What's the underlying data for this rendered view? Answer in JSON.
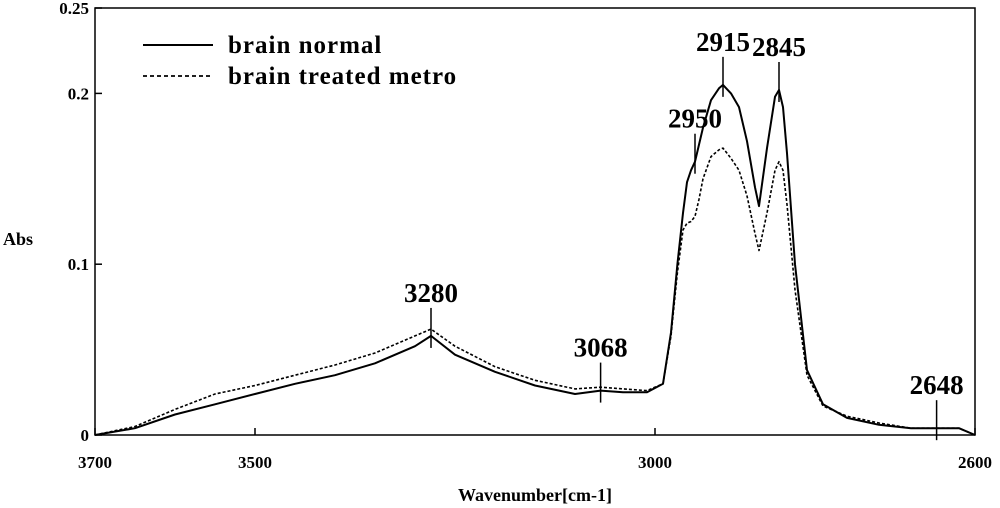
{
  "chart_data": {
    "type": "line",
    "xlabel": "Wavenumber[cm-1]",
    "ylabel": "Abs",
    "xlim": [
      3700,
      2600
    ],
    "ylim": [
      0,
      0.25
    ],
    "x_reversed": true,
    "grid": false,
    "legend_position": "top-left",
    "x_ticks": [
      {
        "value": 3700,
        "label": "3700"
      },
      {
        "value": 3500,
        "label": "3500"
      },
      {
        "value": 3000,
        "label": "3000"
      },
      {
        "value": 2600,
        "label": "2600"
      }
    ],
    "y_ticks": [
      {
        "value": 0,
        "label": "0"
      },
      {
        "value": 0.1,
        "label": "0.1"
      },
      {
        "value": 0.2,
        "label": "0.2"
      },
      {
        "value": 0.25,
        "label": "0.25"
      }
    ],
    "series": [
      {
        "name": "brain normal",
        "style": "solid",
        "color": "#000000",
        "x": [
          3700,
          3650,
          3600,
          3550,
          3500,
          3450,
          3400,
          3350,
          3300,
          3280,
          3250,
          3200,
          3150,
          3100,
          3068,
          3040,
          3010,
          2990,
          2980,
          2972,
          2965,
          2960,
          2955,
          2950,
          2945,
          2940,
          2930,
          2920,
          2915,
          2905,
          2895,
          2885,
          2875,
          2870,
          2860,
          2850,
          2845,
          2840,
          2835,
          2825,
          2810,
          2790,
          2760,
          2720,
          2680,
          2648,
          2620,
          2600
        ],
        "y": [
          0.0,
          0.004,
          0.012,
          0.018,
          0.024,
          0.03,
          0.035,
          0.042,
          0.052,
          0.058,
          0.047,
          0.037,
          0.029,
          0.024,
          0.026,
          0.025,
          0.025,
          0.03,
          0.06,
          0.1,
          0.13,
          0.148,
          0.155,
          0.16,
          0.17,
          0.18,
          0.196,
          0.203,
          0.205,
          0.2,
          0.192,
          0.172,
          0.145,
          0.134,
          0.168,
          0.198,
          0.202,
          0.192,
          0.165,
          0.1,
          0.038,
          0.018,
          0.01,
          0.006,
          0.004,
          0.004,
          0.004,
          0.0
        ]
      },
      {
        "name": "brain treated metro",
        "style": "dashed",
        "color": "#000000",
        "x": [
          3700,
          3650,
          3600,
          3550,
          3500,
          3450,
          3400,
          3350,
          3300,
          3280,
          3250,
          3200,
          3150,
          3100,
          3068,
          3040,
          3010,
          2990,
          2980,
          2972,
          2965,
          2960,
          2955,
          2950,
          2945,
          2940,
          2930,
          2920,
          2915,
          2905,
          2895,
          2885,
          2875,
          2870,
          2860,
          2850,
          2845,
          2840,
          2835,
          2825,
          2810,
          2790,
          2760,
          2720,
          2680,
          2648,
          2620,
          2600
        ],
        "y": [
          0.0,
          0.005,
          0.015,
          0.024,
          0.029,
          0.035,
          0.041,
          0.048,
          0.058,
          0.062,
          0.052,
          0.04,
          0.032,
          0.027,
          0.028,
          0.027,
          0.026,
          0.03,
          0.058,
          0.095,
          0.12,
          0.124,
          0.125,
          0.128,
          0.138,
          0.15,
          0.163,
          0.167,
          0.168,
          0.162,
          0.155,
          0.14,
          0.118,
          0.108,
          0.13,
          0.155,
          0.16,
          0.155,
          0.135,
          0.085,
          0.035,
          0.017,
          0.011,
          0.007,
          0.004,
          0.004,
          0.004,
          0.0
        ]
      }
    ],
    "annotations": [
      {
        "label": "3280",
        "x": 3280,
        "y": 0.058
      },
      {
        "label": "3068",
        "x": 3068,
        "y": 0.026
      },
      {
        "label": "2950",
        "x": 2950,
        "y": 0.16
      },
      {
        "label": "2915",
        "x": 2915,
        "y": 0.205
      },
      {
        "label": "2845",
        "x": 2845,
        "y": 0.202
      },
      {
        "label": "2648",
        "x": 2648,
        "y": 0.004
      }
    ]
  }
}
